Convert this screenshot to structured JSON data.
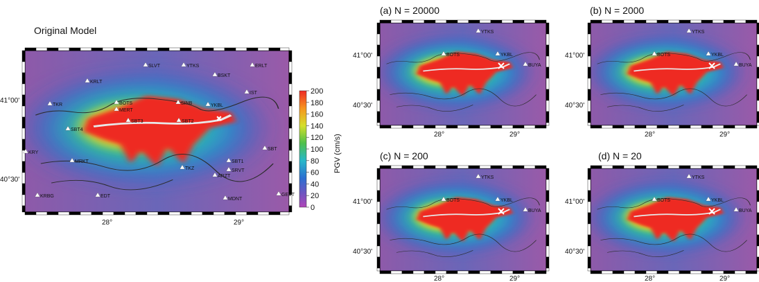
{
  "colors": {
    "background": "#8a5fb0",
    "fault": "#e8e8e8",
    "epicenter": "#ffffff",
    "station": "#ffffff",
    "coast": "#333333"
  },
  "chart_data": {
    "type": "heatmap",
    "colorbar": {
      "label": "PGV (cm/s)",
      "ticks": [
        "200",
        "180",
        "160",
        "140",
        "120",
        "100",
        "80",
        "60",
        "40",
        "20",
        "0"
      ],
      "range": [
        0,
        200
      ]
    },
    "panels": [
      {
        "id": "original",
        "title": "Original Model",
        "x_ticks": [
          "28°",
          "29°"
        ],
        "y_ticks": [
          "41°00'",
          "40°30'"
        ],
        "stations": [
          "KRLT",
          "SLVT",
          "YTKS",
          "BSKT",
          "ERLT",
          "TKR",
          "BOTS",
          "MERT",
          "SINB",
          "YKBL",
          "IST",
          "SBT3",
          "SBT2",
          "SBT4",
          "SBT1",
          "MRKT",
          "SRVT",
          "ARZT",
          "GEVT",
          "KRBG",
          "EDT",
          "MDNT",
          "TKZ",
          "KRY",
          "SBT"
        ]
      },
      {
        "id": "a",
        "title": "(a) N = 20000",
        "x_ticks": [
          "28°",
          "29°"
        ],
        "y_ticks": [
          "41°00'",
          "40°30'"
        ],
        "stations": [
          "YTKS",
          "BOTS",
          "YKBL",
          "BUYA"
        ]
      },
      {
        "id": "b",
        "title": "(b) N = 2000",
        "x_ticks": [
          "28°",
          "29°"
        ],
        "y_ticks": [
          "41°00'",
          "40°30'"
        ],
        "stations": [
          "YTKS",
          "BOTS",
          "YKBL",
          "BUYA"
        ]
      },
      {
        "id": "c",
        "title": "(c) N = 200",
        "x_ticks": [
          "28°",
          "29°"
        ],
        "y_ticks": [
          "41°00'",
          "40°30'"
        ],
        "stations": [
          "YTKS",
          "BOTS",
          "YKBL",
          "BUYA"
        ]
      },
      {
        "id": "d",
        "title": "(d) N = 20",
        "x_ticks": [
          "28°",
          "29°"
        ],
        "y_ticks": [
          "41°00'",
          "40°30'"
        ],
        "stations": [
          "YTKS",
          "BOTS",
          "YKBL",
          "BUYA"
        ]
      }
    ]
  }
}
